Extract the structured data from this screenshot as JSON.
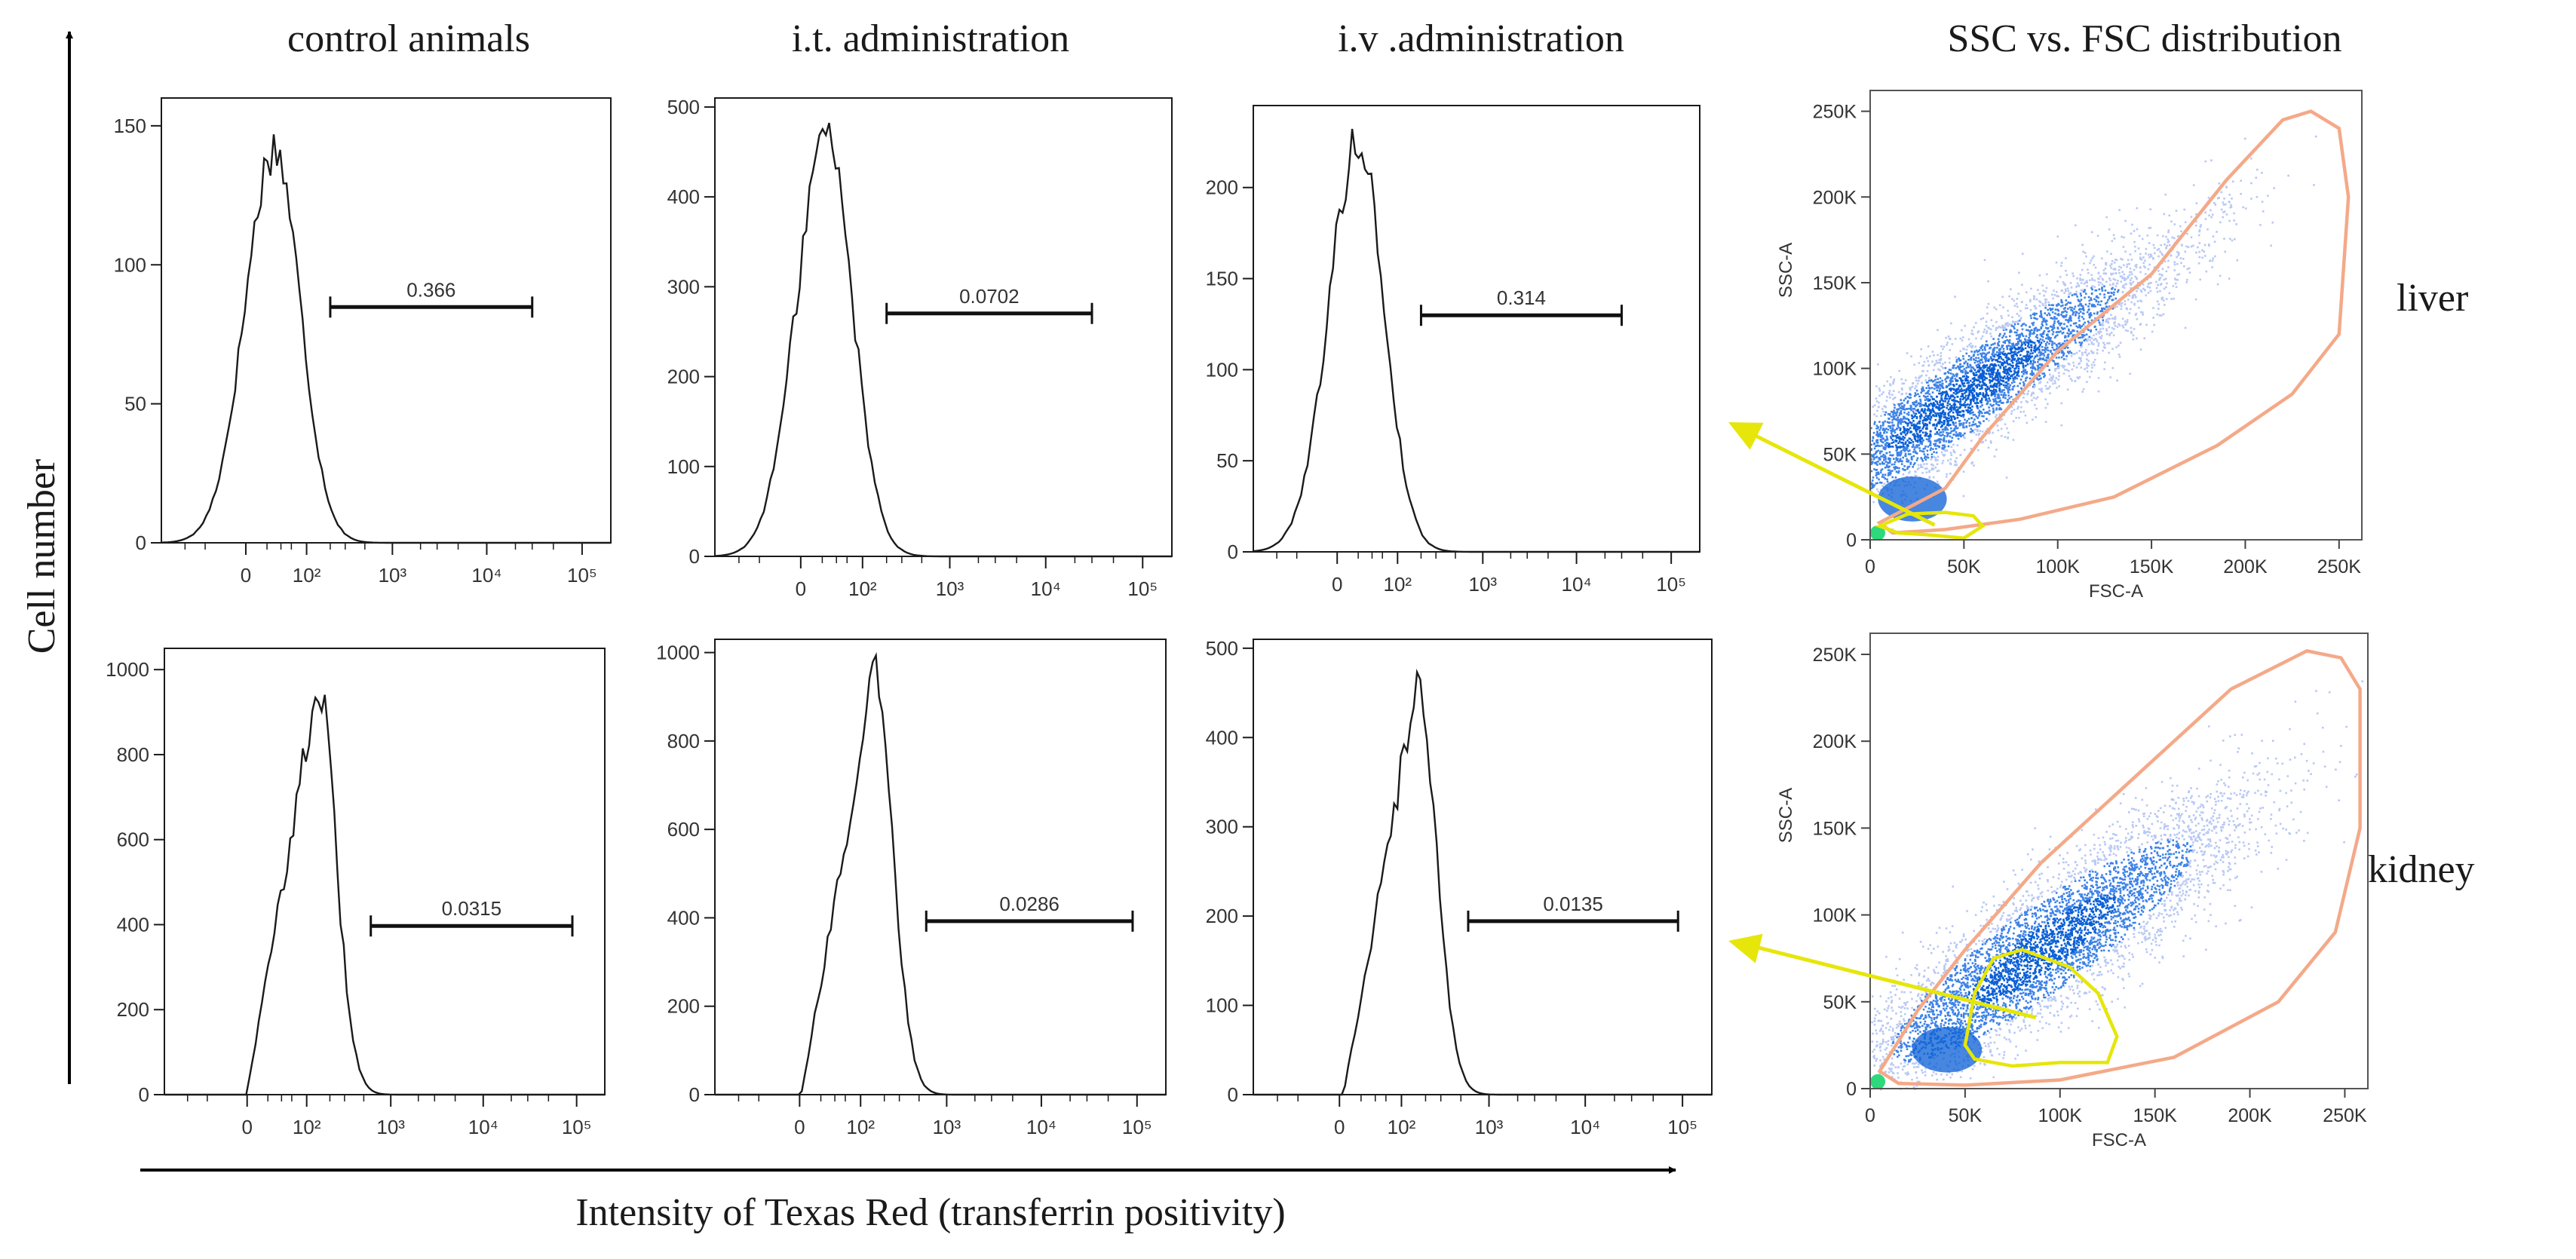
{
  "figure": {
    "column_titles": [
      "control animals",
      "i.t. administration",
      "i.v .administration",
      "SSC vs. FSC distribution"
    ],
    "row_labels": [
      "liver",
      "kidney"
    ],
    "y_axis_title": "Cell number",
    "x_axis_title": "Intensity of Texas Red (transferrin positivity)"
  },
  "colors": {
    "histogram_line": "#1a1a1a",
    "outer_gate": "#f4a988",
    "inner_gate": "#e6e60a",
    "arrow": "#e6e60a",
    "density_high": "#0a5fd6",
    "density_low": "#b8c8f4",
    "density_core": "#2ed97c"
  },
  "chart_data": [
    {
      "type": "line",
      "row": "liver",
      "column": "control animals",
      "xscale": "biexponential",
      "x_ticks": [
        "0",
        "10²",
        "10³",
        "10⁴",
        "10⁵"
      ],
      "y_ticks": [
        "0",
        "50",
        "100",
        "150"
      ],
      "ylim": [
        0,
        160
      ],
      "gate": {
        "from": 200,
        "to": 30000,
        "label": "0.366"
      },
      "peak": {
        "x": 30,
        "y": 148
      }
    },
    {
      "type": "line",
      "row": "liver",
      "column": "i.t. administration",
      "xscale": "biexponential",
      "x_ticks": [
        "0",
        "10²",
        "10³",
        "10⁴",
        "10⁵"
      ],
      "y_ticks": [
        "0",
        "100",
        "200",
        "300",
        "400",
        "500"
      ],
      "ylim": [
        0,
        510
      ],
      "gate": {
        "from": 200,
        "to": 30000,
        "label": "0.0702"
      },
      "peak": {
        "x": 25,
        "y": 490
      }
    },
    {
      "type": "line",
      "row": "liver",
      "column": "i.v .administration",
      "xscale": "biexponential",
      "x_ticks": [
        "0",
        "10²",
        "10³",
        "10⁴",
        "10⁵"
      ],
      "y_ticks": [
        "0",
        "50",
        "100",
        "150",
        "200"
      ],
      "ylim": [
        0,
        245
      ],
      "gate": {
        "from": 200,
        "to": 30000,
        "label": "0.314"
      },
      "peak": {
        "x": 20,
        "y": 235
      }
    },
    {
      "type": "line",
      "row": "kidney",
      "column": "control animals",
      "xscale": "biexponential",
      "x_ticks": [
        "0",
        "10²",
        "10³",
        "10⁴",
        "10⁵"
      ],
      "y_ticks": [
        "0",
        "200",
        "400",
        "600",
        "800",
        "1000"
      ],
      "ylim": [
        0,
        1050
      ],
      "gate": {
        "from": 600,
        "to": 90000,
        "label": "0.0315"
      },
      "peak": {
        "x": 140,
        "y": 1010
      }
    },
    {
      "type": "line",
      "row": "kidney",
      "column": "i.t. administration",
      "xscale": "biexponential",
      "x_ticks": [
        "0",
        "10²",
        "10³",
        "10⁴",
        "10⁵"
      ],
      "y_ticks": [
        "0",
        "200",
        "400",
        "600",
        "800",
        "1000"
      ],
      "ylim": [
        0,
        1030
      ],
      "gate": {
        "from": 600,
        "to": 90000,
        "label": "0.0286"
      },
      "peak": {
        "x": 150,
        "y": 990
      }
    },
    {
      "type": "line",
      "row": "kidney",
      "column": "i.v .administration",
      "xscale": "biexponential",
      "x_ticks": [
        "0",
        "10²",
        "10³",
        "10⁴",
        "10⁵"
      ],
      "y_ticks": [
        "0",
        "100",
        "200",
        "300",
        "400",
        "500"
      ],
      "ylim": [
        0,
        510
      ],
      "gate": {
        "from": 600,
        "to": 90000,
        "label": "0.0135"
      },
      "peak": {
        "x": 160,
        "y": 485
      }
    },
    {
      "type": "scatter",
      "row": "liver",
      "column": "SSC vs. FSC distribution",
      "xlabel": "FSC-A",
      "ylabel": "SSC-A",
      "x_ticks": [
        "0",
        "50K",
        "100K",
        "150K",
        "200K",
        "250K"
      ],
      "y_ticks": [
        "0",
        "50K",
        "100K",
        "150K",
        "200K",
        "250K"
      ],
      "xlim": [
        0,
        262144
      ],
      "ylim": [
        0,
        262144
      ],
      "density_centre": {
        "x": 50000,
        "y": 85000
      },
      "outer_gate": [
        [
          5000,
          10000
        ],
        [
          40000,
          30000
        ],
        [
          60000,
          60000
        ],
        [
          100000,
          110000
        ],
        [
          150000,
          155000
        ],
        [
          190000,
          210000
        ],
        [
          220000,
          245000
        ],
        [
          235000,
          250000
        ],
        [
          250000,
          240000
        ],
        [
          255000,
          200000
        ],
        [
          250000,
          120000
        ],
        [
          225000,
          85000
        ],
        [
          185000,
          55000
        ],
        [
          130000,
          25000
        ],
        [
          80000,
          12000
        ],
        [
          40000,
          6000
        ],
        [
          12000,
          4000
        ]
      ],
      "inner_gate": [
        [
          5000,
          8000
        ],
        [
          20000,
          15000
        ],
        [
          40000,
          16000
        ],
        [
          55000,
          14000
        ],
        [
          60000,
          8000
        ],
        [
          50000,
          1000
        ],
        [
          30000,
          3000
        ],
        [
          15000,
          4000
        ]
      ]
    },
    {
      "type": "scatter",
      "row": "kidney",
      "column": "SSC vs. FSC distribution",
      "xlabel": "FSC-A",
      "ylabel": "SSC-A",
      "x_ticks": [
        "0",
        "50K",
        "100K",
        "150K",
        "200K",
        "250K"
      ],
      "y_ticks": [
        "0",
        "50K",
        "100K",
        "150K",
        "200K",
        "250K"
      ],
      "xlim": [
        0,
        262144
      ],
      "ylim": [
        0,
        262144
      ],
      "density_centre": {
        "x": 90000,
        "y": 80000
      },
      "outer_gate": [
        [
          5000,
          10000
        ],
        [
          25000,
          45000
        ],
        [
          50000,
          80000
        ],
        [
          90000,
          130000
        ],
        [
          140000,
          180000
        ],
        [
          190000,
          230000
        ],
        [
          230000,
          252000
        ],
        [
          248000,
          248000
        ],
        [
          258000,
          230000
        ],
        [
          258000,
          150000
        ],
        [
          245000,
          90000
        ],
        [
          215000,
          50000
        ],
        [
          160000,
          18000
        ],
        [
          100000,
          5000
        ],
        [
          50000,
          2000
        ],
        [
          15000,
          3000
        ]
      ],
      "inner_gate": [
        [
          50000,
          25000
        ],
        [
          55000,
          55000
        ],
        [
          65000,
          75000
        ],
        [
          80000,
          80000
        ],
        [
          105000,
          70000
        ],
        [
          120000,
          55000
        ],
        [
          130000,
          30000
        ],
        [
          125000,
          15000
        ],
        [
          100000,
          15000
        ],
        [
          75000,
          13000
        ],
        [
          55000,
          17000
        ]
      ]
    }
  ]
}
